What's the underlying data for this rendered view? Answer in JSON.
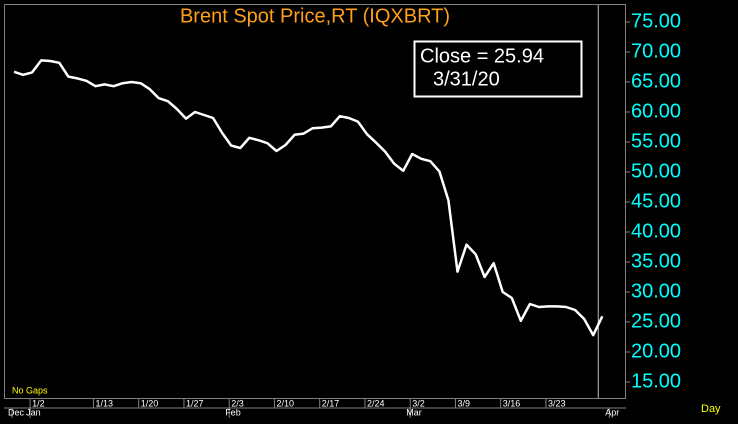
{
  "chart_data": {
    "type": "line",
    "title": "Brent  Spot  Price,RT  (IQXBRT)",
    "annotation": [
      "Close  =  25.94",
      "3/31/20"
    ],
    "footnote": "No  Gaps",
    "x_unit": "Day",
    "categories": [
      null,
      null,
      "1/2",
      null,
      null,
      null,
      null,
      null,
      null,
      "1/13",
      null,
      null,
      null,
      null,
      "1/20",
      null,
      null,
      null,
      null,
      "1/27",
      null,
      null,
      null,
      null,
      "2/3",
      null,
      null,
      null,
      null,
      "2/10",
      null,
      null,
      null,
      null,
      "2/17",
      null,
      null,
      null,
      null,
      "2/24",
      null,
      null,
      null,
      null,
      "3/2",
      null,
      null,
      null,
      null,
      "3/9",
      null,
      null,
      null,
      null,
      "3/16",
      null,
      null,
      null,
      null,
      "3/23",
      null,
      null,
      null,
      null,
      null,
      null,
      null
    ],
    "category_months": [
      "Dec",
      null,
      "Jan",
      null,
      null,
      null,
      null,
      null,
      null,
      null,
      null,
      null,
      null,
      null,
      null,
      null,
      null,
      null,
      null,
      null,
      null,
      null,
      null,
      null,
      "Feb",
      null,
      null,
      null,
      null,
      null,
      null,
      null,
      null,
      null,
      null,
      null,
      null,
      null,
      null,
      null,
      null,
      null,
      null,
      null,
      "Mar",
      null,
      null,
      null,
      null,
      null,
      null,
      null,
      null,
      null,
      null,
      null,
      null,
      null,
      null,
      null,
      null,
      null,
      null,
      null,
      null,
      null,
      "Apr"
    ],
    "series": [
      {
        "name": "Close",
        "color": "#ffffff",
        "values": [
          66.7,
          66.2,
          66.6,
          68.6,
          68.5,
          68.2,
          65.9,
          65.6,
          65.2,
          64.3,
          64.6,
          64.3,
          64.8,
          65.0,
          64.8,
          63.8,
          62.3,
          61.8,
          60.5,
          58.9,
          60.0,
          59.5,
          59.0,
          56.5,
          54.4,
          54.0,
          55.7,
          55.3,
          54.8,
          53.5,
          54.5,
          56.2,
          56.4,
          57.3,
          57.4,
          57.6,
          59.3,
          59.0,
          58.4,
          56.3,
          54.9,
          53.4,
          51.4,
          50.2,
          53.0,
          52.2,
          51.8,
          50.1,
          45.3,
          33.4,
          37.9,
          36.3,
          32.5,
          34.8,
          30.0,
          29.0,
          25.2,
          28.0,
          27.5,
          27.6,
          27.6,
          27.5,
          27.0,
          25.5,
          22.8,
          25.94,
          null
        ]
      }
    ],
    "ylim": [
      12.33,
      77.83
    ],
    "yticks": [
      {
        "value": 15,
        "label": "15.00"
      },
      {
        "value": 20,
        "label": "20.00"
      },
      {
        "value": 25,
        "label": "25.00"
      },
      {
        "value": 30,
        "label": "30.00"
      },
      {
        "value": 35,
        "label": "35.00"
      },
      {
        "value": 40,
        "label": "40.00"
      },
      {
        "value": 45,
        "label": "45.00"
      },
      {
        "value": 50,
        "label": "50.00"
      },
      {
        "value": 55,
        "label": "55.00"
      },
      {
        "value": 60,
        "label": "60.00"
      },
      {
        "value": 65,
        "label": "65.00"
      },
      {
        "value": 70,
        "label": "70.00"
      },
      {
        "value": 75,
        "label": "75.00"
      }
    ],
    "axis_color": "#00ffff",
    "title_color": "#ff9f1a"
  }
}
